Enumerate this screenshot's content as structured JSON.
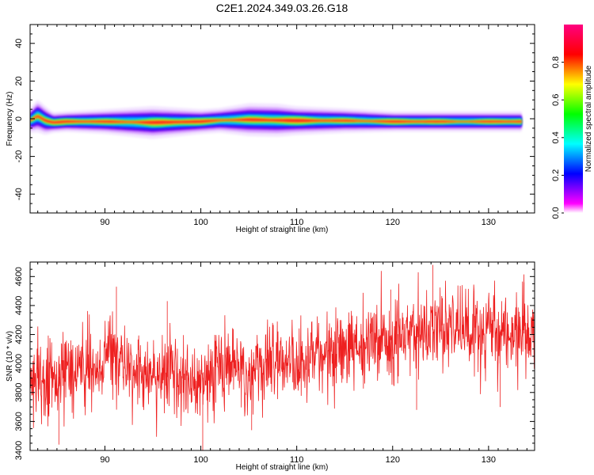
{
  "figure": {
    "title": "C2E1.2024.349.03.26.G18"
  },
  "chart_data": [
    {
      "type": "heatmap",
      "xlabel": "Height of straight line (km)",
      "ylabel": "Frequency (Hz)",
      "xlim": [
        82.2,
        134.8
      ],
      "ylim": [
        -50,
        50
      ],
      "xticks": [
        90,
        100,
        110,
        120,
        130
      ],
      "yticks": [
        -40,
        -20,
        0,
        20,
        40
      ],
      "colorbar": {
        "label": "Normalized spectral amplitude",
        "range": [
          0.0,
          1.0
        ],
        "ticks": [
          0.0,
          0.2,
          0.4,
          0.6,
          0.8
        ],
        "tick_labels": [
          "0.0",
          "0.2",
          "0.4",
          "0.6",
          "0.8"
        ],
        "colormap": [
          "#ff00ff",
          "#0000ff",
          "#00ffff",
          "#00ff00",
          "#ffff00",
          "#ff0000",
          "#ff0080"
        ]
      },
      "ridge": {
        "x": [
          82.2,
          83.0,
          83.8,
          84.6,
          86,
          90,
          95,
          100,
          102,
          105,
          108,
          110,
          115,
          120,
          125,
          130,
          133.5
        ],
        "frequency": [
          -1.0,
          1.5,
          -1.0,
          -2.0,
          -1.5,
          -1.5,
          -2.0,
          -1.5,
          -0.8,
          -0.5,
          -0.8,
          -1.0,
          -1.0,
          -1.5,
          -1.5,
          -1.5,
          -1.5
        ],
        "spread_halfwidth": [
          3.0,
          4.0,
          3.5,
          2.5,
          2.5,
          3.0,
          4.0,
          3.0,
          3.0,
          4.0,
          4.0,
          3.5,
          3.0,
          2.5,
          2.5,
          2.5,
          2.5
        ]
      }
    },
    {
      "type": "line",
      "xlabel": "Height of straight line (km)",
      "ylabel": "SNR (10 * v/v)",
      "xlim": [
        82.2,
        134.8
      ],
      "ylim": [
        3400,
        4700
      ],
      "xticks": [
        90,
        100,
        110,
        120,
        130
      ],
      "yticks": [
        3400,
        3600,
        3800,
        4000,
        4200,
        4400,
        4600
      ],
      "color": "#ee2020",
      "series": [
        {
          "x_start": 82.2,
          "x_end": 134.8,
          "trend": {
            "x": [
              82.2,
              86,
              90,
              94,
              98,
              102,
              106,
              110,
              114,
              118,
              122,
              126,
              130,
              134.8
            ],
            "snr": [
              3870,
              3920,
              4020,
              3950,
              3880,
              3920,
              3960,
              4030,
              4080,
              4130,
              4200,
              4250,
              4230,
              4200
            ]
          },
          "noise_std": 140,
          "spikes": [
            {
              "x": 91.2,
              "snr": 4530
            },
            {
              "x": 96.5,
              "snr": 4430
            },
            {
              "x": 100.2,
              "snr": 3400
            },
            {
              "x": 85.2,
              "snr": 3440
            },
            {
              "x": 119.8,
              "snr": 4510
            },
            {
              "x": 124.2,
              "snr": 4680
            },
            {
              "x": 133.7,
              "snr": 4560
            },
            {
              "x": 131.2,
              "snr": 3700
            },
            {
              "x": 122.5,
              "snr": 3680
            },
            {
              "x": 105.3,
              "snr": 3540
            }
          ]
        }
      ]
    }
  ]
}
